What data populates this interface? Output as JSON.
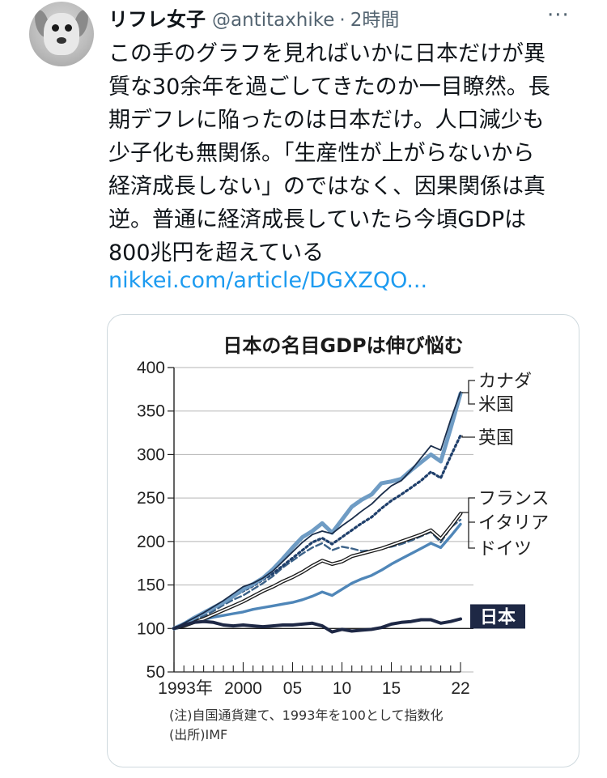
{
  "tweet": {
    "user_name": "リフレ女子",
    "handle": "@antitaxhike",
    "separator": "·",
    "time": "2時間",
    "more_icon": "more-dots-icon",
    "lines": [
      "この手のグラフを見ればいかに日本だけが異",
      "質な30余年を過ごしてきたのか一目瞭然。長",
      "期デフレに陥ったのは日本だけ。人口減少も",
      "少子化も無関係。「生産性が上がらないから",
      "経済成長しない」のではなく、因果関係は真",
      "逆。普通に経済成長していたら今頃GDPは",
      "800兆円を超えている"
    ],
    "link": "nikkei.com/article/DGXZQO..."
  },
  "chart_data": {
    "type": "line",
    "title": "日本の名目GDPは伸び悩む",
    "ylim": [
      50,
      400
    ],
    "yticks": [
      "400",
      "350",
      "300",
      "250",
      "200",
      "150",
      "100",
      "50"
    ],
    "xticks": [
      {
        "year": 1993,
        "label": "1993年"
      },
      {
        "year": 2000,
        "label": "2000"
      },
      {
        "year": 2005,
        "label": "05"
      },
      {
        "year": 2010,
        "label": "10"
      },
      {
        "year": 2015,
        "label": "15"
      },
      {
        "year": 2022,
        "label": "22"
      }
    ],
    "x": [
      1993,
      1994,
      1995,
      1996,
      1997,
      1998,
      1999,
      2000,
      2001,
      2002,
      2003,
      2004,
      2005,
      2006,
      2007,
      2008,
      2009,
      2010,
      2011,
      2012,
      2013,
      2014,
      2015,
      2016,
      2017,
      2018,
      2019,
      2020,
      2021,
      2022
    ],
    "series": [
      {
        "name": "カナダ",
        "color": "#6f9cc4",
        "style": "thick",
        "values": [
          100,
          105,
          112,
          118,
          124,
          130,
          137,
          145,
          151,
          158,
          168,
          180,
          193,
          205,
          212,
          221,
          210,
          225,
          240,
          248,
          254,
          267,
          269,
          272,
          282,
          291,
          300,
          292,
          330,
          370
        ]
      },
      {
        "name": "米国",
        "color": "#1a2d4a",
        "style": "solid",
        "values": [
          100,
          106,
          112,
          118,
          125,
          132,
          140,
          148,
          152,
          158,
          166,
          177,
          188,
          199,
          208,
          212,
          209,
          218,
          226,
          235,
          243,
          254,
          264,
          270,
          282,
          296,
          310,
          305,
          340,
          372
        ]
      },
      {
        "name": "英国",
        "color": "#1f3f6b",
        "style": "dotted",
        "values": [
          100,
          106,
          111,
          117,
          124,
          131,
          137,
          143,
          149,
          156,
          163,
          172,
          181,
          190,
          199,
          204,
          197,
          205,
          213,
          221,
          228,
          238,
          247,
          254,
          262,
          270,
          280,
          273,
          298,
          322
        ]
      },
      {
        "name": "フランス",
        "color": "#1a1a1a",
        "style": "double",
        "values": [
          100,
          103,
          107,
          111,
          116,
          121,
          126,
          131,
          137,
          143,
          148,
          154,
          159,
          165,
          172,
          178,
          174,
          177,
          183,
          186,
          189,
          192,
          196,
          200,
          204,
          208,
          213,
          203,
          217,
          232
        ]
      },
      {
        "name": "イタリア",
        "color": "#3c6288",
        "style": "dashed",
        "values": [
          100,
          104,
          109,
          114,
          120,
          127,
          133,
          138,
          145,
          152,
          160,
          170,
          178,
          186,
          193,
          198,
          190,
          194,
          192,
          189,
          190,
          192,
          194,
          197,
          201,
          206,
          211,
          199,
          216,
          225
        ]
      },
      {
        "name": "ドイツ",
        "color": "#4f86b8",
        "style": "medium",
        "values": [
          100,
          103,
          107,
          110,
          113,
          115,
          117,
          119,
          122,
          124,
          126,
          128,
          130,
          133,
          137,
          142,
          138,
          145,
          152,
          157,
          161,
          167,
          174,
          180,
          186,
          192,
          198,
          193,
          206,
          220
        ]
      },
      {
        "name": "日本",
        "color": "#1e2845",
        "style": "thick",
        "values": [
          100,
          104,
          107,
          108,
          107,
          104,
          103,
          104,
          103,
          102,
          103,
          104,
          104,
          105,
          106,
          103,
          96,
          99,
          97,
          98,
          99,
          101,
          105,
          107,
          108,
          110,
          110,
          106,
          108,
          111
        ]
      }
    ],
    "legend_labels": [
      "カナダ",
      "米国",
      "英国",
      "フランス",
      "イタリア",
      "ドイツ"
    ],
    "japan_label": "日本",
    "note": "(注)自国通貨建て、1993年を100として指数化",
    "source": "(出所)IMF"
  }
}
